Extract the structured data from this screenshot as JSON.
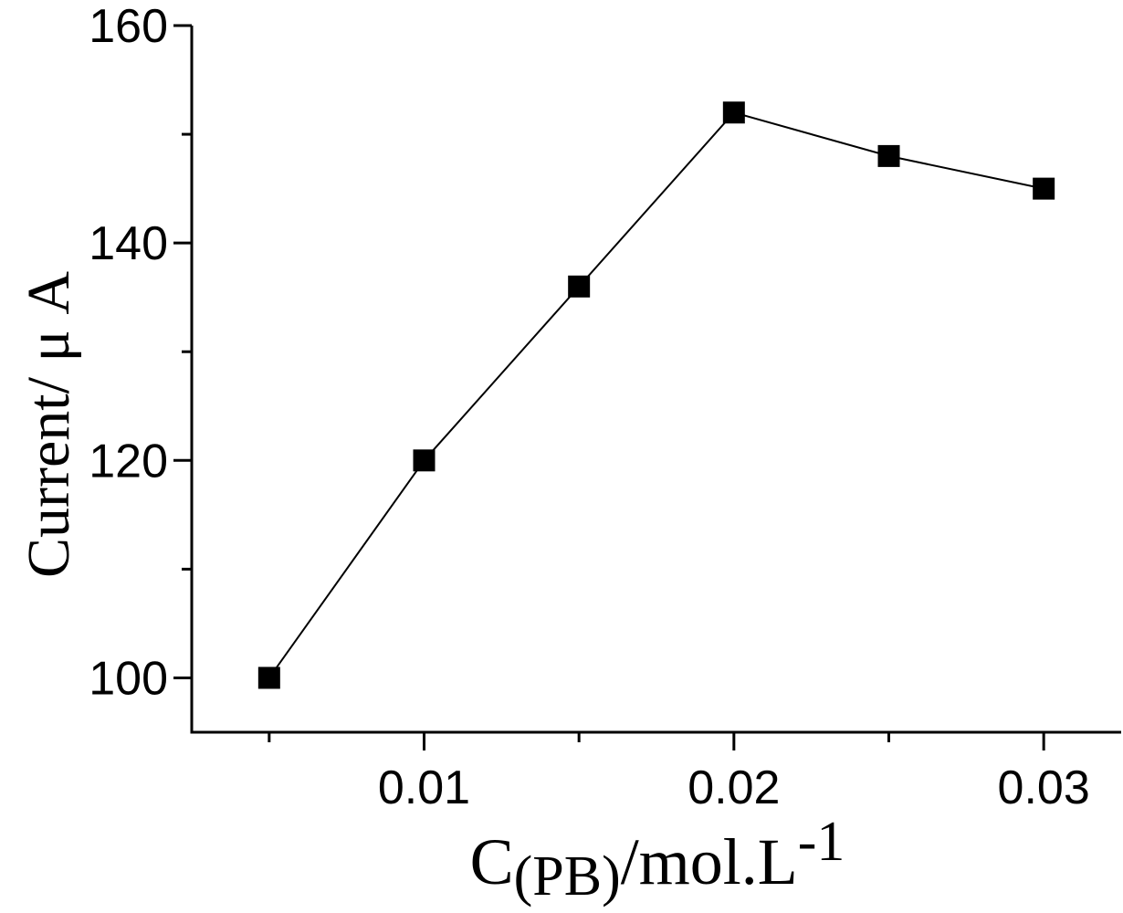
{
  "chart_data": {
    "type": "line",
    "title": "",
    "xlabel": {
      "main": "C",
      "subscript": "(PB)",
      "unit": "/mol.L",
      "superscript": "-1"
    },
    "ylabel": "Current/ μ A",
    "xlim": [
      0.0025,
      0.0325
    ],
    "ylim": [
      95,
      160
    ],
    "x_ticks_major": [
      0.01,
      0.02,
      0.03
    ],
    "x_tick_labels": [
      "0.01",
      "0.02",
      "0.03"
    ],
    "x_ticks_minor": [
      0.005,
      0.015,
      0.025
    ],
    "y_ticks_major": [
      100,
      120,
      140,
      160
    ],
    "y_tick_labels": [
      "100",
      "120",
      "140",
      "160"
    ],
    "y_ticks_minor": [
      110,
      130,
      150
    ],
    "grid": false,
    "legend": "none",
    "marker": "filled-square",
    "color": "#000000",
    "series": [
      {
        "x": [
          0.005,
          0.01,
          0.015,
          0.02,
          0.025,
          0.03
        ],
        "y": [
          100,
          120,
          136,
          152,
          148,
          145
        ]
      }
    ]
  }
}
